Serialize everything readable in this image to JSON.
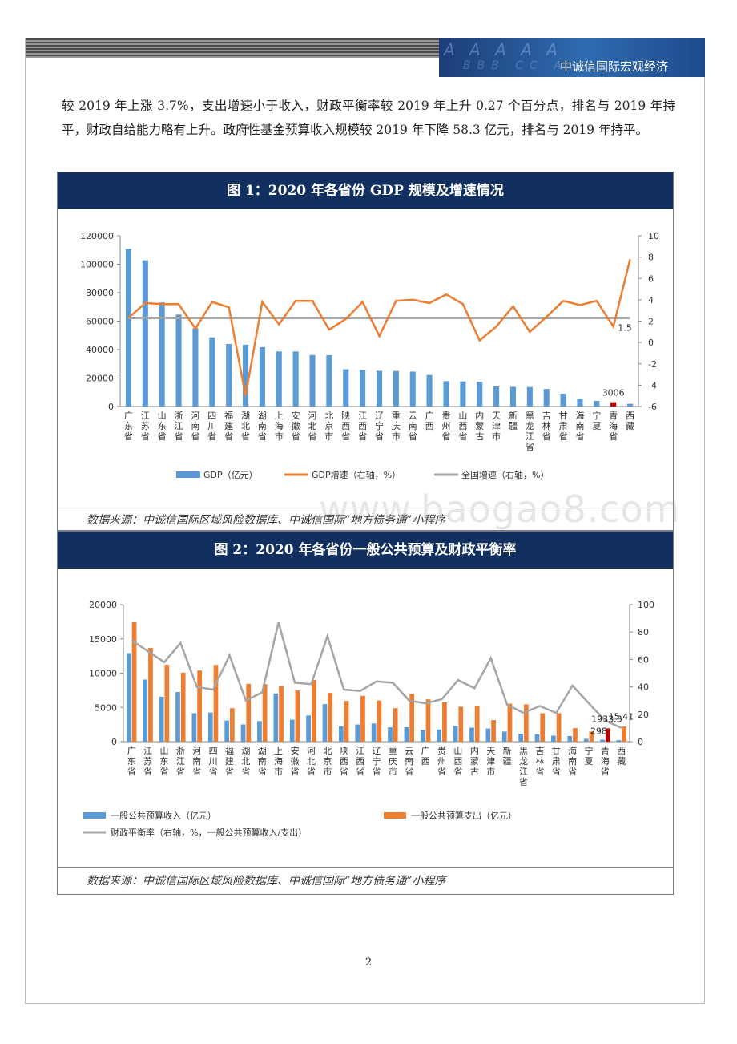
{
  "header": {
    "brand": "中诚信国际宏观经济",
    "deco1": "A A A A A",
    "deco2": "BBB CC A"
  },
  "body_text": "较 2019 年上涨 3.7%，支出增速小于收入，财政平衡率较 2019 年上升 0.27 个百分点，排名与 2019 年持平，财政自给能力略有上升。政府性基金预算收入规模较 2019 年下降 58.3 亿元，排名与 2019 年持平。",
  "figure1": {
    "title": "图 1：2020 年各省份 GDP 规模及增速情况",
    "source": "数据来源：中诚信国际区域风险数据库、中诚信国际“地方债务通”小程序",
    "chart_data": {
      "type": "bar",
      "categories": [
        "广东省",
        "江苏省",
        "山东省",
        "浙江省",
        "河南省",
        "四川省",
        "福建省",
        "湖北省",
        "湖南省",
        "上海市",
        "安徽省",
        "河北省",
        "北京市",
        "陕西省",
        "江西省",
        "辽宁省",
        "重庆市",
        "云南省",
        "广西",
        "贵州省",
        "山西省",
        "内蒙古",
        "天津市",
        "新疆",
        "黑龙江省",
        "吉林省",
        "甘肃省",
        "海南省",
        "宁夏",
        "青海省",
        "西藏"
      ],
      "series": [
        {
          "name": "GDP（亿元）",
          "axis": "left",
          "type": "bar",
          "values": [
            110760,
            102719,
            73129,
            64613,
            54997,
            48599,
            43904,
            43443,
            41781,
            38701,
            38681,
            36207,
            36103,
            26182,
            25692,
            25115,
            25003,
            24522,
            22157,
            17827,
            17652,
            17360,
            14084,
            13798,
            13699,
            12311,
            9017,
            5532,
            3921,
            3006,
            1903
          ]
        },
        {
          "name": "GDP增速（右轴，%）",
          "axis": "right",
          "type": "line",
          "values": [
            2.3,
            3.7,
            3.6,
            3.6,
            1.3,
            3.8,
            3.3,
            -5.0,
            3.8,
            1.7,
            3.9,
            3.9,
            1.2,
            2.2,
            3.8,
            0.6,
            3.9,
            4.0,
            3.7,
            4.5,
            3.6,
            0.2,
            1.5,
            3.4,
            1.0,
            2.4,
            3.9,
            3.5,
            3.9,
            1.5,
            7.8
          ]
        },
        {
          "name": "全国增速（右轴，%）",
          "axis": "right",
          "type": "line",
          "value": 2.3
        }
      ],
      "ylim_left": [
        0,
        120000
      ],
      "yticks_left": [
        "0",
        "20000",
        "40000",
        "60000",
        "80000",
        "100000",
        "120000"
      ],
      "ylim_right": [
        -6,
        10
      ],
      "yticks_right": [
        "-6",
        "-4",
        "-2",
        "0",
        "2",
        "4",
        "6",
        "8",
        "10"
      ],
      "annotations": [
        "3006",
        "1.5"
      ],
      "highlight_category": "青海省",
      "colors": {
        "bar": "#5b9bd5",
        "highlight": "#c00000",
        "line": "#ed7d31",
        "national": "#a5a5a5"
      }
    }
  },
  "figure2": {
    "title": "图 2：2020 年各省份一般公共预算及财政平衡率",
    "source": "数据来源：中诚信国际区域风险数据库、中诚信国际“地方债务通”小程序",
    "chart_data": {
      "type": "bar",
      "categories": [
        "广东省",
        "江苏省",
        "山东省",
        "浙江省",
        "河南省",
        "四川省",
        "福建省",
        "湖北省",
        "湖南省",
        "上海市",
        "安徽省",
        "河北省",
        "北京市",
        "陕西省",
        "江西省",
        "辽宁省",
        "重庆市",
        "云南省",
        "广西",
        "贵州省",
        "山西省",
        "内蒙古",
        "天津市",
        "新疆",
        "黑龙江省",
        "吉林省",
        "甘肃省",
        "海南省",
        "宁夏",
        "青海省",
        "西藏"
      ],
      "series": [
        {
          "name": "一般公共预算收入（亿元）",
          "axis": "left",
          "type": "bar",
          "values": [
            12920,
            9059,
            6560,
            7248,
            4155,
            4258,
            3079,
            2512,
            3009,
            7046,
            3216,
            3826,
            5484,
            2257,
            2507,
            2655,
            2095,
            2117,
            1717,
            1786,
            2297,
            2051,
            1923,
            1477,
            1153,
            1085,
            875,
            817,
            419,
            298,
            221
          ]
        },
        {
          "name": "一般公共预算支出（亿元）",
          "axis": "left",
          "type": "bar",
          "values": [
            17430,
            13683,
            11231,
            10082,
            10382,
            11200,
            4881,
            8439,
            8403,
            8102,
            7471,
            8999,
            7117,
            5947,
            6693,
            6002,
            4893,
            6974,
            6180,
            5741,
            5111,
            5268,
            3151,
            5540,
            5449,
            4142,
            4157,
            1974,
            1483,
            1933.3,
            2208
          ]
        },
        {
          "name": "财政平衡率（右轴，%，一般公共预算收入/支出）",
          "axis": "right",
          "type": "line",
          "values": [
            74,
            66,
            58,
            72,
            40,
            38,
            63,
            30,
            36,
            87,
            43,
            42,
            77,
            38,
            37,
            44,
            43,
            30,
            28,
            31,
            45,
            39,
            61,
            27,
            21,
            26,
            21,
            41,
            28,
            15.41,
            10
          ]
        }
      ],
      "ylim_left": [
        0,
        20000
      ],
      "yticks_left": [
        "0",
        "5000",
        "10000",
        "15000",
        "20000"
      ],
      "ylim_right": [
        0,
        100
      ],
      "yticks_right": [
        "0",
        "20",
        "40",
        "60",
        "80",
        "100"
      ],
      "annotations": [
        "1933.3",
        "298",
        "15.41"
      ],
      "highlight_category": "青海省",
      "colors": {
        "revenue": "#5b9bd5",
        "expenditure": "#ed7d31",
        "highlight": "#c00000",
        "ratio": "#a5a5a5"
      }
    }
  },
  "watermark": "www.baogao8.com",
  "page_number": "2"
}
